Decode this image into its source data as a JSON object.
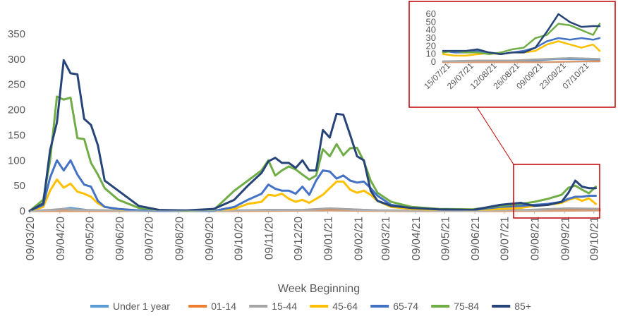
{
  "chart_data": [
    {
      "type": "line",
      "title": "",
      "xlabel": "Week Beginning",
      "ylabel": "",
      "ylim": [
        0,
        350
      ],
      "yticks": [
        0,
        50,
        100,
        150,
        200,
        250,
        300,
        350
      ],
      "x_tick_labels": [
        "09/03/20",
        "09/04/20",
        "09/05/20",
        "09/06/20",
        "09/07/20",
        "09/08/20",
        "09/09/20",
        "09/10/20",
        "09/11/20",
        "09/12/20",
        "09/01/21",
        "09/02/21",
        "09/03/21",
        "09/04/21",
        "09/05/21",
        "09/06/21",
        "09/07/21",
        "09/08/21",
        "09/09/21",
        "09/10/21"
      ],
      "x_range": [
        "2020-03-09",
        "2021-10-15"
      ],
      "grid": false,
      "legend_position": "bottom",
      "series": [
        {
          "name": "Under 1 year",
          "color": "#5B9BD5",
          "x": [
            "2020-03-09",
            "2020-04-01",
            "2020-04-20",
            "2020-05-10",
            "2020-07-01",
            "2020-09-10",
            "2020-11-09",
            "2021-01-05",
            "2021-01-20",
            "2021-03-01",
            "2021-06-01",
            "2021-08-01",
            "2021-09-10",
            "2021-10-15"
          ],
          "values": [
            0,
            1,
            6,
            1,
            0,
            0,
            2,
            1,
            4,
            1,
            0,
            1,
            3,
            2
          ]
        },
        {
          "name": "01-14",
          "color": "#ED7D31",
          "x": [
            "2020-03-09",
            "2020-06-01",
            "2020-10-01",
            "2021-01-10",
            "2021-04-01",
            "2021-07-01",
            "2021-10-15"
          ],
          "values": [
            0,
            0,
            0,
            1,
            0,
            0,
            1
          ]
        },
        {
          "name": "15-44",
          "color": "#A5A5A5",
          "x": [
            "2020-03-09",
            "2020-03-30",
            "2020-04-13",
            "2020-05-04",
            "2020-07-01",
            "2020-09-07",
            "2020-11-09",
            "2020-12-14",
            "2021-01-11",
            "2021-02-01",
            "2021-03-01",
            "2021-06-01",
            "2021-08-02",
            "2021-09-13",
            "2021-10-15"
          ],
          "values": [
            0,
            2,
            4,
            2,
            0,
            0,
            2,
            2,
            5,
            3,
            1,
            0,
            2,
            5,
            4
          ]
        },
        {
          "name": "45-64",
          "color": "#FFC000",
          "x": [
            "2020-03-09",
            "2020-03-23",
            "2020-03-30",
            "2020-04-06",
            "2020-04-13",
            "2020-04-20",
            "2020-04-27",
            "2020-05-04",
            "2020-05-11",
            "2020-05-18",
            "2020-05-25",
            "2020-06-08",
            "2020-06-29",
            "2020-07-20",
            "2020-08-17",
            "2020-09-14",
            "2020-10-05",
            "2020-10-19",
            "2020-11-02",
            "2020-11-09",
            "2020-11-16",
            "2020-11-23",
            "2020-11-30",
            "2020-12-07",
            "2020-12-14",
            "2020-12-21",
            "2020-12-28",
            "2021-01-04",
            "2021-01-11",
            "2021-01-18",
            "2021-01-25",
            "2021-02-01",
            "2021-02-08",
            "2021-02-15",
            "2021-02-22",
            "2021-03-01",
            "2021-03-15",
            "2021-04-05",
            "2021-05-03",
            "2021-06-07",
            "2021-07-05",
            "2021-07-26",
            "2021-08-09",
            "2021-08-23",
            "2021-09-06",
            "2021-09-13",
            "2021-09-20",
            "2021-09-27",
            "2021-10-04",
            "2021-10-11"
          ],
          "values": [
            0,
            8,
            40,
            62,
            46,
            54,
            38,
            34,
            28,
            15,
            8,
            3,
            1,
            0,
            0,
            0,
            4,
            14,
            18,
            32,
            30,
            34,
            24,
            18,
            22,
            16,
            24,
            32,
            45,
            58,
            58,
            42,
            36,
            40,
            32,
            20,
            8,
            4,
            2,
            1,
            4,
            6,
            10,
            12,
            16,
            22,
            26,
            20,
            25,
            14
          ]
        },
        {
          "name": "65-74",
          "color": "#4472C4",
          "x": [
            "2020-03-09",
            "2020-03-23",
            "2020-03-30",
            "2020-04-06",
            "2020-04-13",
            "2020-04-20",
            "2020-04-27",
            "2020-05-04",
            "2020-05-11",
            "2020-05-18",
            "2020-05-25",
            "2020-06-08",
            "2020-06-29",
            "2020-07-20",
            "2020-08-17",
            "2020-09-14",
            "2020-10-05",
            "2020-10-19",
            "2020-11-02",
            "2020-11-09",
            "2020-11-16",
            "2020-11-23",
            "2020-11-30",
            "2020-12-07",
            "2020-12-14",
            "2020-12-21",
            "2020-12-28",
            "2021-01-04",
            "2021-01-11",
            "2021-01-18",
            "2021-01-25",
            "2021-02-01",
            "2021-02-08",
            "2021-02-15",
            "2021-02-22",
            "2021-03-01",
            "2021-03-15",
            "2021-04-05",
            "2021-05-03",
            "2021-06-07",
            "2021-07-05",
            "2021-07-26",
            "2021-08-09",
            "2021-08-23",
            "2021-09-06",
            "2021-09-13",
            "2021-09-20",
            "2021-09-27",
            "2021-10-04",
            "2021-10-11"
          ],
          "values": [
            0,
            12,
            66,
            100,
            80,
            100,
            72,
            52,
            48,
            20,
            8,
            4,
            1,
            0,
            0,
            0,
            8,
            22,
            34,
            52,
            44,
            40,
            40,
            34,
            48,
            32,
            60,
            80,
            78,
            64,
            70,
            60,
            56,
            58,
            45,
            30,
            12,
            6,
            3,
            2,
            8,
            10,
            12,
            14,
            18,
            24,
            28,
            28,
            30,
            30
          ]
        },
        {
          "name": "75-84",
          "color": "#70AD47",
          "x": [
            "2020-03-09",
            "2020-03-23",
            "2020-03-30",
            "2020-04-06",
            "2020-04-13",
            "2020-04-20",
            "2020-04-27",
            "2020-05-04",
            "2020-05-11",
            "2020-05-18",
            "2020-05-25",
            "2020-06-08",
            "2020-06-29",
            "2020-07-20",
            "2020-08-17",
            "2020-09-14",
            "2020-10-05",
            "2020-10-19",
            "2020-11-02",
            "2020-11-09",
            "2020-11-16",
            "2020-11-23",
            "2020-11-30",
            "2020-12-07",
            "2020-12-14",
            "2020-12-21",
            "2020-12-28",
            "2021-01-04",
            "2021-01-11",
            "2021-01-18",
            "2021-01-25",
            "2021-02-01",
            "2021-02-08",
            "2021-02-15",
            "2021-02-22",
            "2021-03-01",
            "2021-03-15",
            "2021-04-05",
            "2021-05-03",
            "2021-06-07",
            "2021-07-05",
            "2021-07-26",
            "2021-08-09",
            "2021-08-23",
            "2021-09-06",
            "2021-09-13",
            "2021-09-20",
            "2021-09-27",
            "2021-10-04",
            "2021-10-11"
          ],
          "values": [
            0,
            22,
            100,
            226,
            220,
            224,
            144,
            142,
            95,
            72,
            45,
            22,
            6,
            2,
            0,
            2,
            40,
            60,
            80,
            100,
            70,
            80,
            88,
            82,
            72,
            62,
            70,
            122,
            108,
            132,
            110,
            124,
            125,
            98,
            60,
            36,
            18,
            8,
            4,
            3,
            10,
            14,
            18,
            24,
            32,
            46,
            50,
            42,
            35,
            48
          ]
        },
        {
          "name": "85+",
          "color": "#264478",
          "x": [
            "2020-03-09",
            "2020-03-23",
            "2020-03-30",
            "2020-04-06",
            "2020-04-13",
            "2020-04-20",
            "2020-04-27",
            "2020-05-04",
            "2020-05-11",
            "2020-05-18",
            "2020-05-25",
            "2020-06-08",
            "2020-06-29",
            "2020-07-20",
            "2020-08-17",
            "2020-09-14",
            "2020-10-05",
            "2020-10-19",
            "2020-11-02",
            "2020-11-09",
            "2020-11-16",
            "2020-11-23",
            "2020-11-30",
            "2020-12-07",
            "2020-12-14",
            "2020-12-21",
            "2020-12-28",
            "2021-01-04",
            "2021-01-11",
            "2021-01-18",
            "2021-01-25",
            "2021-02-01",
            "2021-02-08",
            "2021-02-15",
            "2021-02-22",
            "2021-03-01",
            "2021-03-15",
            "2021-04-05",
            "2021-05-03",
            "2021-06-07",
            "2021-07-05",
            "2021-07-26",
            "2021-08-09",
            "2021-08-23",
            "2021-09-06",
            "2021-09-13",
            "2021-09-20",
            "2021-09-27",
            "2021-10-04",
            "2021-10-11"
          ],
          "values": [
            0,
            15,
            120,
            175,
            298,
            272,
            270,
            182,
            170,
            130,
            60,
            40,
            10,
            2,
            1,
            4,
            22,
            50,
            75,
            98,
            105,
            95,
            95,
            85,
            100,
            80,
            80,
            160,
            145,
            192,
            190,
            150,
            108,
            100,
            40,
            20,
            10,
            6,
            3,
            2,
            12,
            16,
            10,
            12,
            18,
            36,
            60,
            48,
            45,
            45
          ]
        }
      ]
    },
    {
      "type": "line",
      "title": "",
      "ylim": [
        0,
        60
      ],
      "yticks": [
        0,
        10,
        20,
        30,
        40,
        50,
        60
      ],
      "x_tick_labels": [
        "15/07/21",
        "29/07/21",
        "12/08/21",
        "26/08/21",
        "09/09/21",
        "23/09/21",
        "07/10/21"
      ],
      "x_range": [
        "2021-07-12",
        "2021-10-15"
      ],
      "grid": false,
      "series": [
        {
          "name": "Under 1 year",
          "color": "#5B9BD5",
          "x": [
            "2021-07-12",
            "2021-08-09",
            "2021-09-06",
            "2021-09-20",
            "2021-10-15"
          ],
          "values": [
            1,
            1,
            2,
            4,
            3
          ]
        },
        {
          "name": "01-14",
          "color": "#ED7D31",
          "x": [
            "2021-07-12",
            "2021-09-13",
            "2021-10-15"
          ],
          "values": [
            0,
            0,
            1
          ]
        },
        {
          "name": "15-44",
          "color": "#A5A5A5",
          "x": [
            "2021-07-12",
            "2021-08-02",
            "2021-08-23",
            "2021-09-13",
            "2021-09-27",
            "2021-10-15"
          ],
          "values": [
            1,
            2,
            2,
            4,
            5,
            4
          ]
        },
        {
          "name": "45-64",
          "color": "#FFC000",
          "x": [
            "2021-07-12",
            "2021-07-19",
            "2021-07-26",
            "2021-08-02",
            "2021-08-09",
            "2021-08-16",
            "2021-08-23",
            "2021-08-30",
            "2021-09-06",
            "2021-09-13",
            "2021-09-20",
            "2021-09-27",
            "2021-10-04",
            "2021-10-11",
            "2021-10-15"
          ],
          "values": [
            10,
            8,
            8,
            10,
            11,
            10,
            12,
            12,
            14,
            22,
            26,
            22,
            18,
            22,
            14
          ]
        },
        {
          "name": "65-74",
          "color": "#4472C4",
          "x": [
            "2021-07-12",
            "2021-07-19",
            "2021-07-26",
            "2021-08-02",
            "2021-08-09",
            "2021-08-16",
            "2021-08-23",
            "2021-08-30",
            "2021-09-06",
            "2021-09-13",
            "2021-09-20",
            "2021-09-27",
            "2021-10-04",
            "2021-10-11",
            "2021-10-15"
          ],
          "values": [
            14,
            12,
            12,
            14,
            12,
            10,
            12,
            14,
            18,
            26,
            30,
            28,
            30,
            28,
            30
          ]
        },
        {
          "name": "75-84",
          "color": "#70AD47",
          "x": [
            "2021-07-12",
            "2021-07-19",
            "2021-07-26",
            "2021-08-02",
            "2021-08-09",
            "2021-08-16",
            "2021-08-23",
            "2021-08-30",
            "2021-09-06",
            "2021-09-13",
            "2021-09-20",
            "2021-09-27",
            "2021-10-04",
            "2021-10-11",
            "2021-10-15"
          ],
          "values": [
            12,
            14,
            12,
            12,
            10,
            12,
            16,
            18,
            30,
            34,
            48,
            46,
            40,
            34,
            48
          ]
        },
        {
          "name": "85+",
          "color": "#264478",
          "x": [
            "2021-07-12",
            "2021-07-19",
            "2021-07-26",
            "2021-08-02",
            "2021-08-09",
            "2021-08-16",
            "2021-08-23",
            "2021-08-30",
            "2021-09-06",
            "2021-09-13",
            "2021-09-20",
            "2021-09-27",
            "2021-10-04",
            "2021-10-11",
            "2021-10-15"
          ],
          "values": [
            14,
            14,
            14,
            16,
            12,
            10,
            12,
            12,
            18,
            38,
            60,
            50,
            44,
            45,
            45
          ]
        }
      ]
    }
  ],
  "colors": {
    "highlight_box": "#C00000",
    "axis": "#BFBFBF",
    "text": "#595959"
  }
}
